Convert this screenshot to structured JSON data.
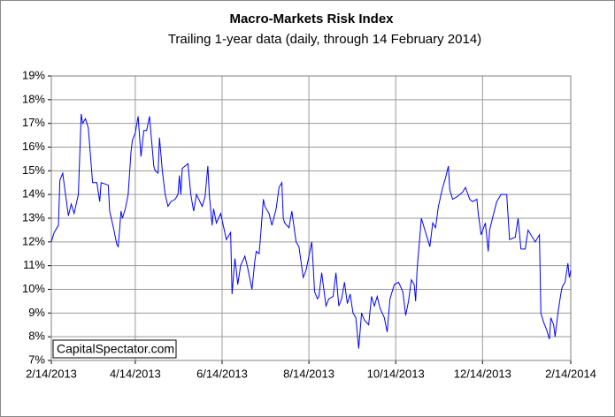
{
  "chart_data": {
    "type": "line",
    "title": "Macro-Markets Risk Index",
    "subtitle": "Trailing 1-year data (daily, through 14 February 2014)",
    "watermark": "CapitalSpectator.com",
    "color": "#0000ff",
    "grid": true,
    "xlim": [
      "2013-02-14",
      "2014-02-14"
    ],
    "xticks": [
      {
        "value": "2013-02-14",
        "label": "2/14/2013"
      },
      {
        "value": "2013-04-14",
        "label": "4/14/2013"
      },
      {
        "value": "2013-06-14",
        "label": "6/14/2013"
      },
      {
        "value": "2013-08-14",
        "label": "8/14/2013"
      },
      {
        "value": "2013-10-14",
        "label": "10/14/2013"
      },
      {
        "value": "2013-12-14",
        "label": "12/14/2013"
      },
      {
        "value": "2014-02-14",
        "label": "2/14/2014"
      }
    ],
    "ylim": [
      7,
      19
    ],
    "yticks": [
      {
        "value": 7,
        "label": "7%"
      },
      {
        "value": 8,
        "label": "8%"
      },
      {
        "value": 9,
        "label": "9%"
      },
      {
        "value": 10,
        "label": "10%"
      },
      {
        "value": 11,
        "label": "11%"
      },
      {
        "value": 12,
        "label": "12%"
      },
      {
        "value": 13,
        "label": "13%"
      },
      {
        "value": 14,
        "label": "14%"
      },
      {
        "value": 15,
        "label": "15%"
      },
      {
        "value": 16,
        "label": "16%"
      },
      {
        "value": 17,
        "label": "17%"
      },
      {
        "value": 18,
        "label": "18%"
      },
      {
        "value": 19,
        "label": "19%"
      }
    ],
    "x": [
      "2013-02-14",
      "2013-02-16",
      "2013-02-19",
      "2013-02-20",
      "2013-02-22",
      "2013-02-24",
      "2013-02-26",
      "2013-02-28",
      "2013-03-02",
      "2013-03-05",
      "2013-03-07",
      "2013-03-08",
      "2013-03-10",
      "2013-03-12",
      "2013-03-15",
      "2013-03-18",
      "2013-03-20",
      "2013-03-21",
      "2013-03-26",
      "2013-03-27",
      "2013-03-30",
      "2013-04-01",
      "2013-04-02",
      "2013-04-04",
      "2013-04-05",
      "2013-04-07",
      "2013-04-09",
      "2013-04-11",
      "2013-04-12",
      "2013-04-14",
      "2013-04-16",
      "2013-04-18",
      "2013-04-20",
      "2013-04-22",
      "2013-04-24",
      "2013-04-27",
      "2013-04-28",
      "2013-04-30",
      "2013-05-01",
      "2013-05-03",
      "2013-05-05",
      "2013-05-07",
      "2013-05-09",
      "2013-05-12",
      "2013-05-14",
      "2013-05-15",
      "2013-05-16",
      "2013-05-17",
      "2013-05-21",
      "2013-05-23",
      "2013-05-25",
      "2013-05-27",
      "2013-05-31",
      "2013-06-02",
      "2013-06-04",
      "2013-06-05",
      "2013-06-07",
      "2013-06-08",
      "2013-06-10",
      "2013-06-13",
      "2013-06-17",
      "2013-06-20",
      "2013-06-21",
      "2013-06-23",
      "2013-06-24",
      "2013-06-25",
      "2013-06-27",
      "2013-06-30",
      "2013-07-02",
      "2013-07-05",
      "2013-07-07",
      "2013-07-08",
      "2013-07-10",
      "2013-07-11",
      "2013-07-12",
      "2013-07-13",
      "2013-07-14",
      "2013-07-17",
      "2013-07-19",
      "2013-07-22",
      "2013-07-24",
      "2013-07-26",
      "2013-07-27",
      "2013-07-28",
      "2013-07-31",
      "2013-08-02",
      "2013-08-05",
      "2013-08-07",
      "2013-08-10",
      "2013-08-12",
      "2013-08-14",
      "2013-08-16",
      "2013-08-17",
      "2013-08-18",
      "2013-08-20",
      "2013-08-21",
      "2013-08-23",
      "2013-08-26",
      "2013-08-28",
      "2013-08-31",
      "2013-09-02",
      "2013-09-04",
      "2013-09-06",
      "2013-09-08",
      "2013-09-10",
      "2013-09-12",
      "2013-09-14",
      "2013-09-16",
      "2013-09-18",
      "2013-09-20",
      "2013-09-22",
      "2013-09-25",
      "2013-09-27",
      "2013-09-29",
      "2013-10-01",
      "2013-10-03",
      "2013-10-06",
      "2013-10-08",
      "2013-10-10",
      "2013-10-13",
      "2013-10-16",
      "2013-10-19",
      "2013-10-21",
      "2013-10-23",
      "2013-10-25",
      "2013-10-27",
      "2013-10-28",
      "2013-10-29",
      "2013-11-01",
      "2013-11-04",
      "2013-11-07",
      "2013-11-09",
      "2013-11-11",
      "2013-11-13",
      "2013-11-16",
      "2013-11-18",
      "2013-11-20",
      "2013-11-21",
      "2013-11-23",
      "2013-11-26",
      "2013-11-28",
      "2013-11-30",
      "2013-12-02",
      "2013-12-05",
      "2013-12-07",
      "2013-12-10",
      "2013-12-11",
      "2013-12-13",
      "2013-12-16",
      "2013-12-18",
      "2013-12-19",
      "2013-12-21",
      "2013-12-24",
      "2013-12-27",
      "2013-12-31",
      "2014-01-02",
      "2014-01-06",
      "2014-01-08",
      "2014-01-10",
      "2014-01-13",
      "2014-01-15",
      "2014-01-20",
      "2014-01-23",
      "2014-01-24",
      "2014-01-26",
      "2014-01-28",
      "2014-01-30",
      "2014-01-31",
      "2014-02-02",
      "2014-02-03",
      "2014-02-05",
      "2014-02-07",
      "2014-02-08",
      "2014-02-10",
      "2014-02-12",
      "2014-02-13",
      "2014-02-14"
    ],
    "values": [
      12.0,
      12.4,
      12.7,
      14.6,
      14.9,
      14.0,
      13.1,
      13.6,
      13.2,
      14.0,
      17.4,
      17.0,
      17.2,
      16.8,
      14.5,
      14.5,
      13.7,
      14.5,
      14.4,
      13.3,
      12.5,
      11.9,
      11.8,
      13.3,
      13.0,
      13.4,
      14.0,
      15.8,
      16.3,
      16.6,
      17.3,
      15.6,
      16.7,
      16.7,
      17.3,
      15.2,
      15.0,
      14.9,
      16.4,
      15.0,
      14.0,
      13.5,
      13.7,
      13.8,
      14.0,
      14.8,
      14.0,
      15.1,
      15.3,
      14.0,
      13.3,
      14.0,
      13.5,
      13.9,
      15.2,
      14.0,
      12.7,
      13.4,
      12.8,
      13.2,
      12.1,
      12.4,
      9.8,
      11.3,
      10.8,
      10.2,
      11.0,
      11.4,
      10.9,
      10.0,
      11.2,
      11.6,
      11.5,
      12.2,
      13.0,
      13.8,
      13.5,
      13.2,
      12.7,
      13.4,
      14.3,
      14.5,
      13.0,
      12.8,
      12.6,
      13.3,
      12.0,
      11.8,
      10.5,
      10.8,
      11.4,
      12.0,
      11.0,
      9.9,
      9.6,
      9.7,
      10.7,
      9.3,
      9.6,
      9.7,
      10.7,
      9.3,
      9.6,
      10.3,
      9.4,
      9.8,
      9.0,
      8.8,
      7.5,
      9.0,
      8.7,
      8.5,
      9.7,
      9.3,
      9.7,
      9.2,
      8.8,
      8.2,
      9.6,
      10.2,
      10.3,
      9.9,
      8.9,
      9.5,
      10.4,
      10.2,
      9.5,
      10.8,
      13.0,
      12.4,
      11.8,
      12.8,
      12.6,
      13.5,
      14.3,
      14.7,
      15.2,
      14.2,
      13.8,
      13.9,
      14.0,
      14.1,
      14.3,
      13.8,
      13.7,
      13.8,
      13.2,
      12.3,
      12.8,
      11.6,
      12.5,
      13.0,
      13.7,
      14.0,
      14.0,
      12.1,
      12.2,
      13.0,
      11.7,
      11.7,
      12.5,
      12.0,
      12.3,
      9.0,
      8.6,
      8.3,
      7.9,
      8.8,
      8.5,
      8.0,
      9.0,
      9.8,
      10.1,
      10.3,
      11.1,
      10.5,
      10.8
    ]
  }
}
